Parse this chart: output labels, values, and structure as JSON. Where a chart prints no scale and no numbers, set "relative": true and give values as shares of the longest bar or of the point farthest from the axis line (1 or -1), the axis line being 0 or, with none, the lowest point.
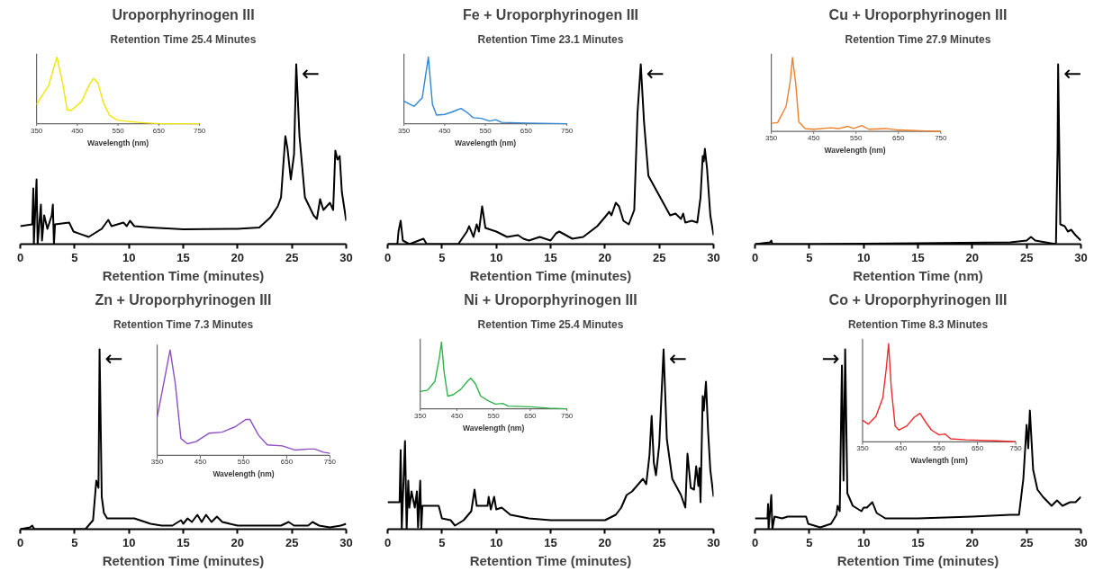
{
  "chart_data": [
    {
      "type": "line",
      "title": "Uroporphyrinogen III",
      "subtitle": "Retention Time 25.4 Minutes",
      "xlabel": "Retention Time (minutes)",
      "relative": true,
      "tick_labels": "x",
      "xlim": [
        0,
        30
      ],
      "xticks": [
        0,
        5,
        10,
        15,
        20,
        25,
        30
      ],
      "x": [
        0,
        1.1,
        1.2,
        1.25,
        1.5,
        1.6,
        1.9,
        2.0,
        2.2,
        2.5,
        2.9,
        3.0,
        3.1,
        3.2,
        4.5,
        4.9,
        5.5,
        6.3,
        7.5,
        8.1,
        8.4,
        9.5,
        9.8,
        10.1,
        10.5,
        12,
        15,
        20,
        22,
        23,
        23.7,
        24.0,
        24.4,
        24.6,
        24.9,
        25.2,
        25.4,
        25.7,
        26.2,
        27.0,
        27.3,
        27.6,
        27.9,
        28.5,
        28.8,
        29.0,
        29.2,
        29.4,
        29.6,
        30
      ],
      "annotations": [
        {
          "text": "←",
          "x": 25.4,
          "y": 1.0
        }
      ],
      "series": [
        {
          "color": "#000000",
          "values": [
            0.1,
            0.11,
            0.31,
            0,
            0.36,
            0,
            0.22,
            0.02,
            0.16,
            0.085,
            0.16,
            0.22,
            0,
            0.11,
            0.12,
            0.07,
            0.057,
            0.04,
            0.085,
            0.135,
            0.1,
            0.12,
            0.1,
            0.13,
            0.1,
            0.093,
            0.082,
            0.085,
            0.093,
            0.147,
            0.21,
            0.26,
            0.6,
            0.53,
            0.36,
            0.5,
            1.0,
            0.6,
            0.26,
            0.16,
            0.14,
            0.25,
            0.19,
            0.23,
            0.19,
            0.52,
            0.47,
            0.49,
            0.29,
            0.13
          ]
        }
      ]
    },
    {
      "type": "line",
      "xlabel": "Wavelength (nm)",
      "relative": true,
      "tick_labels": "x",
      "xlim": [
        350,
        750
      ],
      "xticks": [
        350,
        450,
        550,
        650,
        750
      ],
      "x": [
        350,
        380,
        400,
        415,
        425,
        435,
        460,
        480,
        490,
        500,
        515,
        530,
        550,
        600,
        650,
        750
      ],
      "series": [
        {
          "color": "#f2e600",
          "values": [
            0.29,
            0.58,
            1.0,
            0.58,
            0.21,
            0.2,
            0.33,
            0.59,
            0.68,
            0.62,
            0.3,
            0.12,
            0.05,
            0.02,
            0,
            0
          ]
        }
      ]
    },
    {
      "type": "line",
      "title": "Fe + Uroporphyrinogen III",
      "subtitle": "Retention Time 23.1 Minutes",
      "xlabel": "Retention Time (minutes)",
      "relative": true,
      "tick_labels": "x",
      "xlim": [
        0,
        30
      ],
      "xticks": [
        0,
        5,
        10,
        15,
        20,
        25,
        30
      ],
      "x": [
        0,
        0.9,
        1.0,
        1.2,
        1.4,
        2,
        3.3,
        3.6,
        6.5,
        7.3,
        7.5,
        7.9,
        8.2,
        8.4,
        8.7,
        9,
        10,
        11,
        12,
        12.5,
        13,
        14,
        15,
        15.5,
        15.8,
        17,
        18,
        19.3,
        20,
        20.4,
        20.6,
        21,
        21.3,
        21.7,
        22.2,
        22.7,
        23,
        23.3,
        23.6,
        24,
        25,
        26,
        26.5,
        27,
        27.2,
        27.4,
        28,
        28.5,
        28.8,
        29,
        29.1,
        29.2,
        29.4,
        29.7,
        30
      ],
      "annotations": [
        {
          "text": "←",
          "x": 23.3,
          "y": 1.0
        }
      ],
      "series": [
        {
          "color": "#000000",
          "values": [
            0,
            0,
            0.07,
            0.13,
            0.02,
            0,
            0.03,
            0,
            0,
            0.07,
            0.1,
            0.04,
            0.11,
            0.07,
            0.21,
            0.09,
            0.07,
            0.04,
            0.05,
            0.03,
            0.02,
            0.04,
            0.02,
            0.06,
            0.07,
            0.03,
            0.04,
            0.1,
            0.15,
            0.18,
            0.16,
            0.23,
            0.21,
            0.13,
            0.11,
            0.19,
            0.73,
            1.0,
            0.68,
            0.38,
            0.27,
            0.16,
            0.17,
            0.14,
            0.17,
            0.12,
            0.13,
            0.12,
            0.26,
            0.49,
            0.46,
            0.53,
            0.42,
            0.16,
            0.05
          ]
        }
      ]
    },
    {
      "type": "line",
      "xlabel": "Wavelength (nm)",
      "relative": true,
      "tick_labels": "x",
      "xlim": [
        350,
        750
      ],
      "xticks": [
        350,
        450,
        550,
        650,
        750
      ],
      "x": [
        350,
        375,
        395,
        410,
        420,
        430,
        450,
        470,
        490,
        505,
        520,
        540,
        560,
        575,
        590,
        650,
        750
      ],
      "series": [
        {
          "color": "#2e86d4",
          "values": [
            0.34,
            0.26,
            0.39,
            1.0,
            0.29,
            0.13,
            0.14,
            0.18,
            0.23,
            0.17,
            0.09,
            0.08,
            0.04,
            0.06,
            0.02,
            0.01,
            0
          ]
        }
      ]
    },
    {
      "type": "line",
      "title": "Cu + Uroporphyrinogen III",
      "subtitle": "Retention Time 27.9 Minutes",
      "xlabel": "Retention Time (nm)",
      "relative": true,
      "tick_labels": "x",
      "xlim": [
        0,
        30
      ],
      "xticks": [
        0,
        5,
        10,
        15,
        20,
        25,
        30
      ],
      "x": [
        0,
        1.4,
        1.5,
        1.6,
        5,
        23.5,
        25,
        25.4,
        25.8,
        27.7,
        27.85,
        27.9,
        28.1,
        28.5,
        28.8,
        29.1,
        29.5,
        30
      ],
      "annotations": [
        {
          "text": "←",
          "x": 27.9,
          "y": 1.0
        }
      ],
      "series": [
        {
          "color": "#000000",
          "values": [
            0,
            0.01,
            0.02,
            0,
            0,
            0.01,
            0.02,
            0.04,
            0.02,
            0,
            0.53,
            1.0,
            0.11,
            0.1,
            0.07,
            0.08,
            0.05,
            0.02
          ]
        }
      ]
    },
    {
      "type": "line",
      "xlabel": "Wavelength  (nm)",
      "relative": true,
      "tick_labels": "x",
      "xlim": [
        350,
        750
      ],
      "xticks": [
        350,
        450,
        550,
        650,
        750
      ],
      "x": [
        350,
        365,
        385,
        395,
        400,
        408,
        415,
        430,
        450,
        490,
        510,
        530,
        545,
        563,
        580,
        620,
        650,
        700,
        750
      ],
      "series": [
        {
          "color": "#f07f2a",
          "values": [
            0.11,
            0.12,
            0.34,
            0.69,
            1.0,
            0.63,
            0.13,
            0.04,
            0.03,
            0.05,
            0.04,
            0.07,
            0.04,
            0.08,
            0.03,
            0.04,
            0.02,
            0.01,
            0
          ]
        }
      ]
    },
    {
      "type": "line",
      "title": "Zn + Uroporphyrinogen III",
      "subtitle": "Retention Time 7.3 Minutes",
      "xlabel": "Retention Time (minutes)",
      "relative": true,
      "tick_labels": "x",
      "xlim": [
        0,
        30
      ],
      "xticks": [
        0,
        5,
        10,
        15,
        20,
        25,
        30
      ],
      "x": [
        0,
        0.9,
        1.1,
        1.3,
        6,
        6.7,
        7.0,
        7.2,
        7.3,
        7.5,
        7.7,
        8,
        9,
        10.5,
        12,
        13,
        14,
        14.8,
        15,
        15.4,
        15.8,
        16.3,
        16.7,
        17.1,
        17.6,
        18.1,
        18.6,
        20,
        22,
        24,
        24.7,
        25.2,
        26.5,
        26.9,
        27.5,
        28.5,
        29.5,
        30
      ],
      "annotations": [
        {
          "text": "←",
          "x": 7.3,
          "y": 1.0
        }
      ],
      "series": [
        {
          "color": "#000000",
          "values": [
            0,
            0.01,
            0.02,
            0,
            0,
            0.05,
            0.27,
            0.23,
            1.0,
            0.18,
            0.09,
            0.06,
            0.06,
            0.06,
            0.03,
            0.02,
            0.02,
            0.05,
            0.03,
            0.06,
            0.04,
            0.08,
            0.04,
            0.08,
            0.04,
            0.07,
            0.04,
            0.02,
            0.02,
            0.02,
            0.04,
            0.02,
            0.02,
            0.04,
            0.02,
            0.01,
            0.02,
            0.03
          ]
        }
      ]
    },
    {
      "type": "line",
      "xlabel": "Wavelength (nm)",
      "relative": true,
      "tick_labels": "x",
      "xlim": [
        350,
        750
      ],
      "xticks": [
        350,
        450,
        550,
        650,
        750
      ],
      "x": [
        350,
        365,
        380,
        392,
        405,
        420,
        440,
        470,
        500,
        530,
        555,
        565,
        585,
        605,
        640,
        670,
        700,
        715,
        735,
        750
      ],
      "series": [
        {
          "color": "#8e4fc2",
          "values": [
            0.36,
            0.68,
            1.0,
            0.68,
            0.16,
            0.11,
            0.13,
            0.21,
            0.22,
            0.27,
            0.34,
            0.34,
            0.19,
            0.1,
            0.09,
            0.05,
            0.06,
            0.06,
            0.03,
            0.02
          ]
        }
      ]
    },
    {
      "type": "line",
      "title": "Ni + Uroporphyrinogen III",
      "subtitle": "Retention Time 25.4 Minutes",
      "xlabel": "Retention Time (minutes)",
      "relative": true,
      "tick_labels": "x",
      "xlim": [
        0,
        30
      ],
      "xticks": [
        0,
        5,
        10,
        15,
        20,
        25,
        30
      ],
      "x": [
        0,
        1.1,
        1.2,
        1.3,
        1.6,
        1.75,
        1.9,
        2.0,
        2.2,
        2.5,
        2.7,
        2.8,
        3.0,
        3.1,
        3.2,
        4.7,
        5.0,
        5.8,
        6.2,
        7,
        7.7,
        8.0,
        8.2,
        9.2,
        9.3,
        9.5,
        9.8,
        10,
        10.5,
        11.3,
        13,
        15,
        20,
        21,
        21.5,
        22,
        22.5,
        23.5,
        23.8,
        24.1,
        24.3,
        24.5,
        24.7,
        25.0,
        25.4,
        25.7,
        26.2,
        27.0,
        27.4,
        27.6,
        27.9,
        28.2,
        28.4,
        28.6,
        28.7,
        28.8,
        29.0,
        29.1,
        29.3,
        29.5,
        29.7,
        30
      ],
      "annotations": [
        {
          "text": "←",
          "x": 25.4,
          "y": 1.0
        }
      ],
      "series": [
        {
          "color": "#000000",
          "values": [
            0.15,
            0.15,
            0.44,
            0,
            0.49,
            0,
            0.27,
            0.12,
            0.21,
            0.12,
            0.21,
            0.01,
            0.27,
            0,
            0.13,
            0.13,
            0.06,
            0.05,
            0.02,
            0.05,
            0.1,
            0.22,
            0.13,
            0.13,
            0.18,
            0.11,
            0.18,
            0.11,
            0.12,
            0.08,
            0.06,
            0.05,
            0.05,
            0.08,
            0.12,
            0.19,
            0.21,
            0.28,
            0.25,
            0.41,
            0.63,
            0.37,
            0.3,
            0.47,
            1.0,
            0.5,
            0.28,
            0.19,
            0.12,
            0.42,
            0.23,
            0.22,
            0.35,
            0.24,
            0.34,
            0.15,
            0.74,
            0.66,
            0.82,
            0.54,
            0.33,
            0.18
          ]
        }
      ]
    },
    {
      "type": "line",
      "xlabel": "Wavelength (nm)",
      "relative": true,
      "tick_labels": "x",
      "xlim": [
        350,
        750
      ],
      "xticks": [
        350,
        450,
        550,
        650,
        750
      ],
      "x": [
        350,
        370,
        390,
        402,
        408,
        415,
        425,
        440,
        460,
        480,
        488,
        500,
        515,
        535,
        555,
        575,
        590,
        650,
        700,
        750
      ],
      "series": [
        {
          "color": "#2db34a",
          "values": [
            0.26,
            0.28,
            0.41,
            0.76,
            1.0,
            0.56,
            0.19,
            0.21,
            0.29,
            0.42,
            0.46,
            0.38,
            0.19,
            0.12,
            0.07,
            0.08,
            0.04,
            0.03,
            0.01,
            0
          ]
        }
      ]
    },
    {
      "type": "line",
      "title": "Co + Uroporphyrinogen III",
      "subtitle": "Retention Time 8.3 Minutes",
      "xlabel": "Retention Time (minutes)",
      "relative": true,
      "tick_labels": "x",
      "xlim": [
        0,
        30
      ],
      "xticks": [
        0,
        5,
        10,
        15,
        20,
        25,
        30
      ],
      "x": [
        0,
        1.15,
        1.2,
        1.25,
        1.5,
        1.6,
        1.8,
        2.5,
        3,
        4.7,
        4.9,
        6,
        7,
        7.5,
        7.6,
        7.8,
        8.0,
        8.15,
        8.3,
        8.5,
        9,
        9.8,
        10,
        10.3,
        10.8,
        11.2,
        12,
        15,
        20,
        23.5,
        24.3,
        24.7,
        25.0,
        25.15,
        25.3,
        25.6,
        26,
        26.5,
        27.3,
        27.8,
        28.3,
        29,
        29.5,
        30
      ],
      "annotations": [
        {
          "text": "→",
          "x": 8.3,
          "y": 1.0
        }
      ],
      "series": [
        {
          "color": "#000000",
          "values": [
            0.06,
            0.06,
            0.14,
            0,
            0.19,
            0,
            0.07,
            0.06,
            0.07,
            0.07,
            0.03,
            0.01,
            0.03,
            0.08,
            0.13,
            0.1,
            0.91,
            0.27,
            1.0,
            0.2,
            0.13,
            0.1,
            0.12,
            0.12,
            0.15,
            0.09,
            0.06,
            0.06,
            0.07,
            0.08,
            0.08,
            0.28,
            0.58,
            0.45,
            0.66,
            0.33,
            0.22,
            0.18,
            0.13,
            0.16,
            0.13,
            0.15,
            0.15,
            0.18
          ]
        }
      ]
    },
    {
      "type": "line",
      "xlabel": "Wavlength (nm)",
      "relative": true,
      "tick_labels": "x",
      "xlim": [
        350,
        750
      ],
      "xticks": [
        350,
        450,
        550,
        650,
        750
      ],
      "x": [
        350,
        365,
        385,
        403,
        412,
        418,
        425,
        435,
        445,
        465,
        485,
        500,
        515,
        530,
        550,
        565,
        580,
        620,
        700,
        750
      ],
      "series": [
        {
          "color": "#ee2a2a",
          "values": [
            0.22,
            0.18,
            0.26,
            0.45,
            0.75,
            1.0,
            0.55,
            0.16,
            0.12,
            0.16,
            0.25,
            0.29,
            0.2,
            0.12,
            0.07,
            0.08,
            0.03,
            0.02,
            0.01,
            0
          ]
        }
      ]
    }
  ]
}
